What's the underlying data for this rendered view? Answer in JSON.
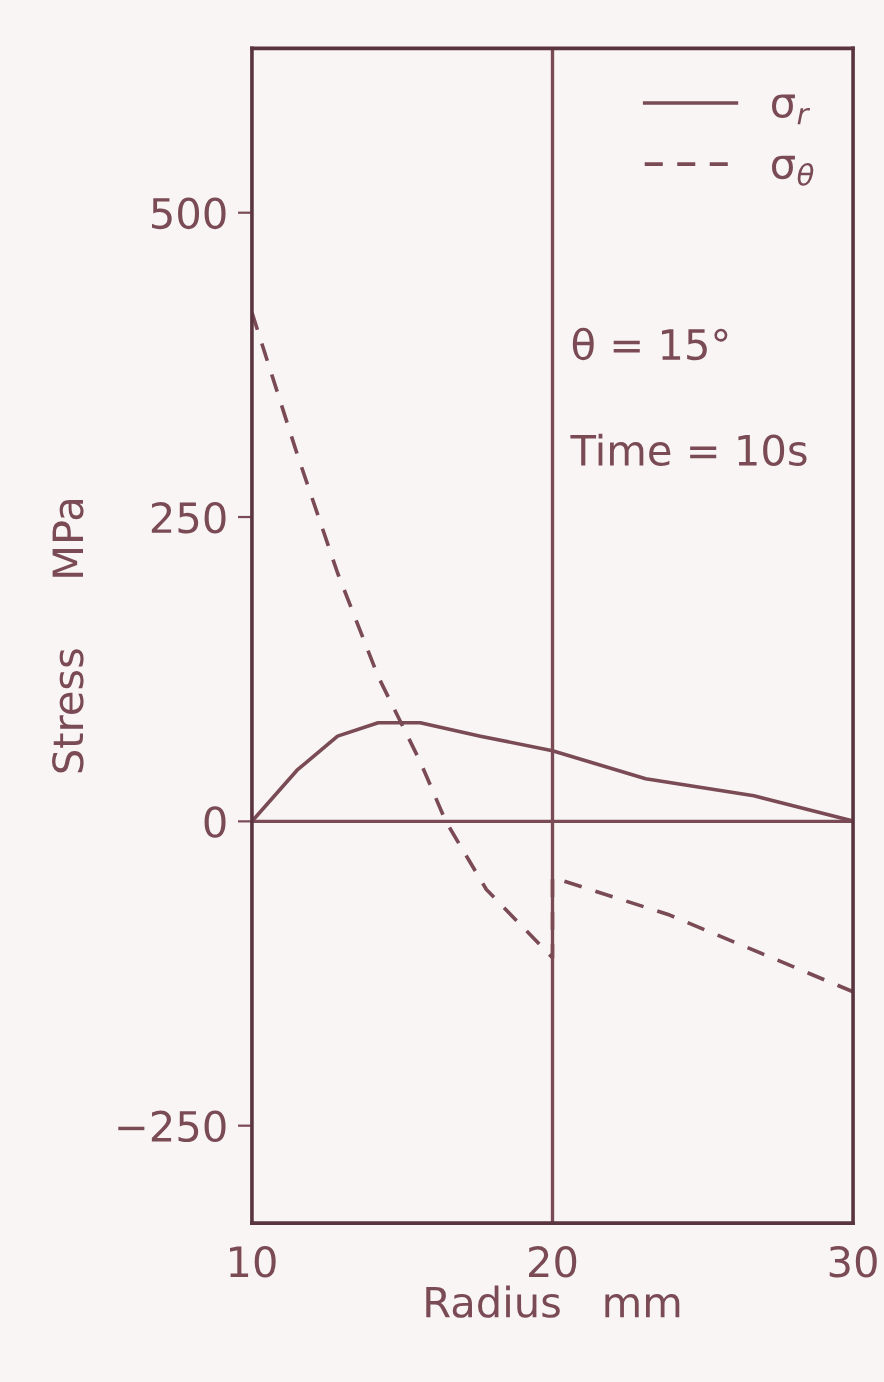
{
  "chart_data": {
    "type": "line",
    "xlabel": "Radius   mm",
    "ylabel": "Stress     MPa",
    "series": [
      {
        "name": "σ$_{r}$",
        "color": "#7a4a55",
        "line_style": "solid",
        "x": [
          10,
          11.5,
          12.85,
          14.2,
          15.6,
          17.6,
          20,
          23.1,
          26.7,
          29.9,
          30
        ],
        "values": [
          0,
          42,
          70,
          81,
          81,
          70,
          58,
          35,
          21,
          1,
          0
        ]
      },
      {
        "name": "σ$_{θ}$",
        "color": "#7a4a55",
        "line_style": "dashed",
        "x": [
          10,
          11.5,
          12.85,
          14.2,
          15.6,
          16.45,
          17.8,
          20,
          20,
          23.9,
          30
        ],
        "values": [
          418,
          302,
          204,
          119,
          49,
          0,
          -56,
          -112,
          -46,
          -77,
          -140
        ]
      }
    ],
    "annotations": [
      "θ = 15°",
      "Time = 10s"
    ],
    "ref_lines": [
      {
        "axis": "y",
        "value": 0,
        "color": "#7a4a55"
      },
      {
        "axis": "x",
        "value": 20,
        "color": "#7a4a55"
      }
    ],
    "xlim": [
      10,
      30
    ],
    "xticks": [
      10,
      20,
      30
    ],
    "ylim": [
      -330,
      635
    ],
    "yticks": [
      500,
      250,
      0,
      {
        "value": -250,
        "label": "−250"
      }
    ],
    "grid": false,
    "legend": "top right",
    "marker": "none"
  }
}
